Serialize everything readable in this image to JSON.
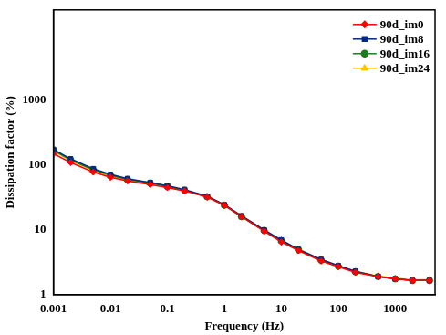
{
  "chart_data": {
    "type": "line",
    "x_label": "Frequency (Hz)",
    "y_label": "Dissipation factor (%)",
    "x": [
      0.001,
      0.002,
      0.005,
      0.01,
      0.02,
      0.05,
      0.1,
      0.2,
      0.5,
      1,
      2,
      5,
      10,
      20,
      50,
      100,
      200,
      500,
      1000,
      2000,
      4000
    ],
    "series": [
      {
        "name": "90d_im0",
        "color": "#ff0000",
        "marker": "diamond",
        "values": [
          150,
          110,
          78,
          65,
          57,
          50,
          45,
          40,
          32,
          24,
          16,
          9.5,
          6.5,
          4.8,
          3.3,
          2.7,
          2.2,
          1.9,
          1.75,
          1.65,
          1.65
        ]
      },
      {
        "name": "90d_im8",
        "color": "#002b7f",
        "marker": "square",
        "values": [
          175,
          125,
          88,
          72,
          62,
          54,
          48,
          42,
          33,
          24.5,
          16.5,
          10,
          7,
          5,
          3.5,
          2.8,
          2.3,
          1.9,
          1.75,
          1.65,
          1.65
        ]
      },
      {
        "name": "90d_im16",
        "color": "#1e7b1e",
        "marker": "circle",
        "values": [
          170,
          120,
          85,
          70,
          60,
          53,
          47,
          41,
          32.5,
          24,
          16,
          9.8,
          6.8,
          4.9,
          3.4,
          2.75,
          2.25,
          1.9,
          1.75,
          1.65,
          1.65
        ]
      },
      {
        "name": "90d_im24",
        "color": "#ffc000",
        "marker": "triangle",
        "values": [
          165,
          118,
          82,
          68,
          58,
          52,
          46,
          41,
          33,
          24.5,
          16.5,
          10,
          7,
          5,
          3.5,
          2.8,
          2.3,
          1.95,
          1.8,
          1.7,
          1.7
        ]
      }
    ],
    "xlim": [
      0.001,
      5000
    ],
    "ylim": [
      1,
      25000
    ],
    "xticks": [
      0.001,
      0.01,
      0.1,
      1,
      10,
      100,
      1000
    ],
    "yticks": [
      1,
      10,
      100,
      1000
    ],
    "log": true,
    "grid": false,
    "legend": "upper right"
  }
}
